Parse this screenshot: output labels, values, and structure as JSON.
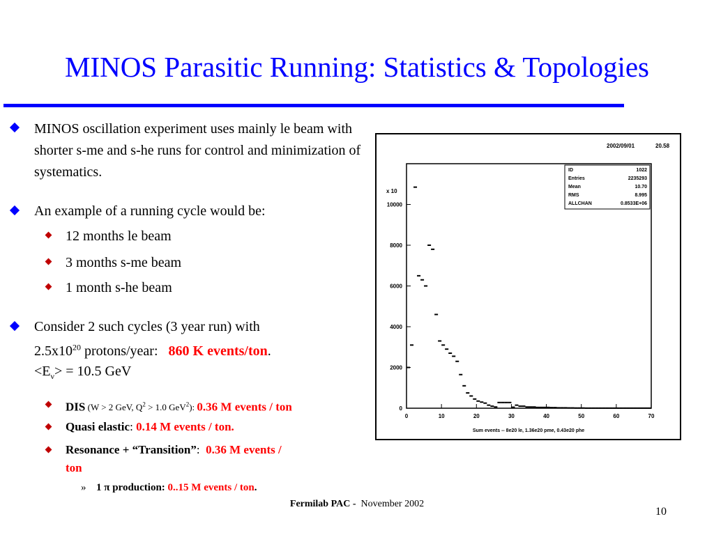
{
  "title": "MINOS Parasitic Running: Statistics & Topologies",
  "bullets": [
    {
      "text": "MINOS oscillation experiment uses mainly le beam with shorter s-me and s-he runs for control and minimization of systematics."
    },
    {
      "text": "An example of a running cycle would be:",
      "subitems": [
        "12 months le beam",
        "3 months s-me beam",
        "1 month s-he beam"
      ]
    },
    {
      "line1": "Consider  2 such cycles (3 year run) with",
      "line2_pre": "2.5x10",
      "line2_sup": "20",
      "line2_mid": " protons/year:   ",
      "line2_red": "860 K events/ton",
      "line2_post": ".",
      "line3_pre": "<E",
      "line3_sub": "ν",
      "line3_post": "> = 10.5 GeV"
    }
  ],
  "topologies": [
    {
      "label": "DIS",
      "cond_pre": " (W > 2 GeV, Q",
      "cond_sup1": "2",
      "cond_mid": " > 1.0 GeV",
      "cond_sup2": "2",
      "cond_post": "): ",
      "value": "0.36 M events / ton"
    },
    {
      "label": "Quasi elastic",
      "sep": ": ",
      "value": "0.14 M events / ton."
    },
    {
      "label": "Resonance + “Transition”",
      "sep": ":  ",
      "value": "0.36 M events /",
      "value_cont": "ton"
    }
  ],
  "subsub": {
    "marker": "»",
    "label_pre": "1 ",
    "pi": "π",
    "label_post": " production: ",
    "value": "0..15 M events / ton",
    "end": "."
  },
  "footer": {
    "org": "Fermilab PAC - ",
    "date": " November 2002"
  },
  "page_number": "10",
  "colors": {
    "title": "#0000ff",
    "highlight": "#ff0000",
    "sub_bullet": "#c00000"
  },
  "chart_data": {
    "type": "histogram",
    "date_label": "2002/09/01",
    "time_label": "20.58",
    "y_multiplier": "x 10",
    "xlabel": "Sum events -- 8e20 le, 1.36e20 pme, 0.43e20 phe",
    "xlim": [
      0,
      70
    ],
    "ylim": [
      0,
      12000
    ],
    "x_ticks": [
      0,
      10,
      20,
      30,
      40,
      50,
      60,
      70
    ],
    "y_ticks": [
      0,
      2000,
      4000,
      6000,
      8000,
      10000
    ],
    "stats": [
      {
        "key": "ID",
        "value": "1022"
      },
      {
        "key": "Entries",
        "value": "2235293"
      },
      {
        "key": "Mean",
        "value": "10.70"
      },
      {
        "key": "RMS",
        "value": "8.995"
      },
      {
        "key": "ALLCHAN",
        "value": "0.8533E+06"
      }
    ],
    "bins": [
      {
        "x": 1,
        "y": 2000
      },
      {
        "x": 2,
        "y": 3100
      },
      {
        "x": 3,
        "y": 10850
      },
      {
        "x": 4,
        "y": 6500
      },
      {
        "x": 5,
        "y": 6300
      },
      {
        "x": 6,
        "y": 6000
      },
      {
        "x": 7,
        "y": 8000
      },
      {
        "x": 8,
        "y": 7800
      },
      {
        "x": 9,
        "y": 4600
      },
      {
        "x": 10,
        "y": 3300
      },
      {
        "x": 11,
        "y": 3100
      },
      {
        "x": 12,
        "y": 2900
      },
      {
        "x": 13,
        "y": 2700
      },
      {
        "x": 14,
        "y": 2550
      },
      {
        "x": 15,
        "y": 2300
      },
      {
        "x": 16,
        "y": 1650
      },
      {
        "x": 17,
        "y": 1100
      },
      {
        "x": 18,
        "y": 750
      },
      {
        "x": 19,
        "y": 600
      },
      {
        "x": 20,
        "y": 450
      },
      {
        "x": 21,
        "y": 350
      },
      {
        "x": 22,
        "y": 300
      },
      {
        "x": 23,
        "y": 250
      },
      {
        "x": 24,
        "y": 150
      },
      {
        "x": 25,
        "y": 100
      },
      {
        "x": 26,
        "y": 60
      },
      {
        "x": 27,
        "y": 280
      },
      {
        "x": 28,
        "y": 280
      },
      {
        "x": 29,
        "y": 280
      },
      {
        "x": 30,
        "y": 280
      },
      {
        "x": 31,
        "y": 50
      },
      {
        "x": 32,
        "y": 150
      },
      {
        "x": 33,
        "y": 100
      },
      {
        "x": 34,
        "y": 100
      },
      {
        "x": 35,
        "y": 60
      },
      {
        "x": 36,
        "y": 60
      },
      {
        "x": 37,
        "y": 60
      },
      {
        "x": 38,
        "y": 40
      },
      {
        "x": 39,
        "y": 40
      },
      {
        "x": 40,
        "y": 40
      },
      {
        "x": 41,
        "y": 40
      },
      {
        "x": 42,
        "y": 30
      },
      {
        "x": 43,
        "y": 30
      },
      {
        "x": 44,
        "y": 20
      },
      {
        "x": 45,
        "y": 20
      },
      {
        "x": 46,
        "y": 20
      },
      {
        "x": 47,
        "y": 15
      },
      {
        "x": 48,
        "y": 15
      },
      {
        "x": 49,
        "y": 10
      },
      {
        "x": 50,
        "y": 10
      },
      {
        "x": 51,
        "y": 10
      },
      {
        "x": 52,
        "y": 5
      },
      {
        "x": 53,
        "y": 5
      },
      {
        "x": 54,
        "y": 5
      },
      {
        "x": 55,
        "y": 5
      },
      {
        "x": 56,
        "y": 5
      },
      {
        "x": 57,
        "y": 5
      },
      {
        "x": 58,
        "y": 5
      },
      {
        "x": 59,
        "y": 5
      },
      {
        "x": 60,
        "y": 5
      },
      {
        "x": 61,
        "y": 5
      },
      {
        "x": 62,
        "y": 5
      },
      {
        "x": 63,
        "y": 5
      },
      {
        "x": 64,
        "y": 5
      },
      {
        "x": 65,
        "y": 5
      },
      {
        "x": 66,
        "y": 5
      },
      {
        "x": 67,
        "y": 5
      },
      {
        "x": 68,
        "y": 5
      },
      {
        "x": 69,
        "y": 5
      },
      {
        "x": 70,
        "y": 5
      }
    ]
  }
}
